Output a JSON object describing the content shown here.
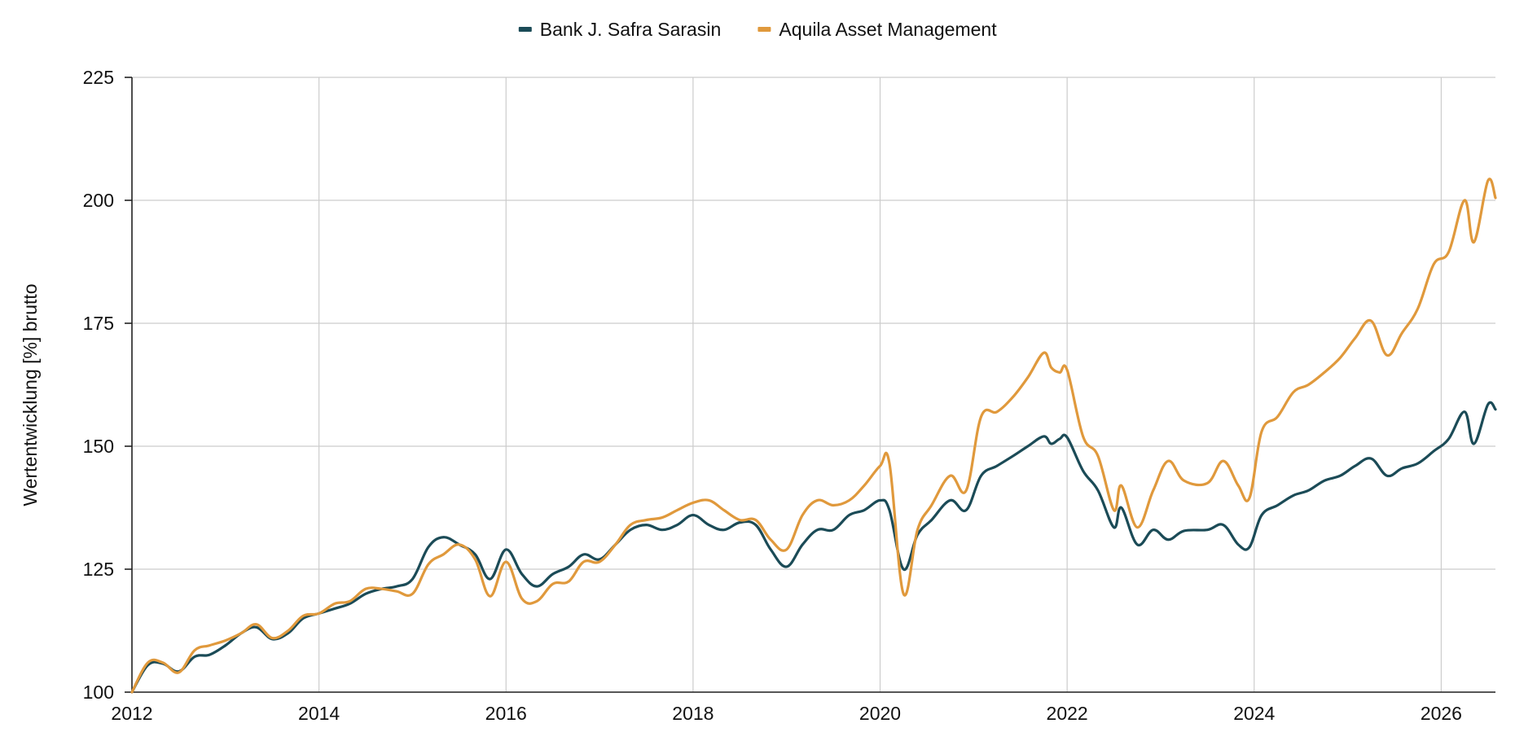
{
  "chart_data": {
    "type": "line",
    "title": "",
    "xlabel": "",
    "ylabel": "Wertentwicklung [%] brutto",
    "xlim": [
      2012.0,
      2026.58
    ],
    "ylim": [
      100,
      225
    ],
    "x_ticks": [
      2012,
      2014,
      2016,
      2018,
      2020,
      2022,
      2024,
      2026
    ],
    "y_ticks": [
      100,
      125,
      150,
      175,
      200,
      225
    ],
    "grid": true,
    "legend_position": "top-center",
    "series": [
      {
        "name": "Bank J. Safra Sarasin",
        "color": "#1b4b57",
        "points": [
          [
            2012.0,
            100
          ],
          [
            2012.17,
            105.5
          ],
          [
            2012.33,
            105.8
          ],
          [
            2012.5,
            104.2
          ],
          [
            2012.67,
            107.2
          ],
          [
            2012.83,
            107.6
          ],
          [
            2013.0,
            109.5
          ],
          [
            2013.17,
            112
          ],
          [
            2013.33,
            113.2
          ],
          [
            2013.5,
            110.8
          ],
          [
            2013.67,
            112
          ],
          [
            2013.83,
            115
          ],
          [
            2014.0,
            116
          ],
          [
            2014.17,
            117
          ],
          [
            2014.33,
            118
          ],
          [
            2014.5,
            120
          ],
          [
            2014.67,
            121
          ],
          [
            2014.83,
            121.5
          ],
          [
            2015.0,
            123
          ],
          [
            2015.17,
            129.5
          ],
          [
            2015.33,
            131.5
          ],
          [
            2015.5,
            130
          ],
          [
            2015.67,
            128
          ],
          [
            2015.83,
            123
          ],
          [
            2016.0,
            129
          ],
          [
            2016.17,
            124
          ],
          [
            2016.33,
            121.5
          ],
          [
            2016.5,
            124
          ],
          [
            2016.67,
            125.5
          ],
          [
            2016.83,
            128
          ],
          [
            2017.0,
            127
          ],
          [
            2017.17,
            130
          ],
          [
            2017.33,
            133
          ],
          [
            2017.5,
            134
          ],
          [
            2017.67,
            133
          ],
          [
            2017.83,
            134
          ],
          [
            2018.0,
            136
          ],
          [
            2018.17,
            134
          ],
          [
            2018.33,
            133
          ],
          [
            2018.5,
            134.5
          ],
          [
            2018.67,
            134
          ],
          [
            2018.83,
            129
          ],
          [
            2019.0,
            125.5
          ],
          [
            2019.17,
            130
          ],
          [
            2019.33,
            133
          ],
          [
            2019.5,
            133
          ],
          [
            2019.67,
            136
          ],
          [
            2019.83,
            137
          ],
          [
            2020.0,
            139
          ],
          [
            2020.1,
            137
          ],
          [
            2020.25,
            125
          ],
          [
            2020.4,
            132
          ],
          [
            2020.55,
            135
          ],
          [
            2020.75,
            139
          ],
          [
            2020.92,
            137
          ],
          [
            2021.08,
            144
          ],
          [
            2021.25,
            146
          ],
          [
            2021.42,
            148
          ],
          [
            2021.58,
            150
          ],
          [
            2021.75,
            152
          ],
          [
            2021.83,
            150.5
          ],
          [
            2021.92,
            151.5
          ],
          [
            2022.0,
            151.8
          ],
          [
            2022.17,
            145
          ],
          [
            2022.33,
            141
          ],
          [
            2022.5,
            133.5
          ],
          [
            2022.58,
            137.5
          ],
          [
            2022.75,
            130
          ],
          [
            2022.92,
            133
          ],
          [
            2023.08,
            131
          ],
          [
            2023.25,
            132.8
          ],
          [
            2023.5,
            133
          ],
          [
            2023.67,
            134
          ],
          [
            2023.83,
            130
          ],
          [
            2023.95,
            129.5
          ],
          [
            2024.08,
            136
          ],
          [
            2024.25,
            138
          ],
          [
            2024.42,
            140
          ],
          [
            2024.58,
            141
          ],
          [
            2024.75,
            143
          ],
          [
            2024.92,
            144
          ],
          [
            2025.08,
            146
          ],
          [
            2025.25,
            147.5
          ],
          [
            2025.42,
            144
          ],
          [
            2025.58,
            145.5
          ],
          [
            2025.75,
            146.5
          ],
          [
            2025.92,
            149
          ],
          [
            2026.08,
            151.5
          ],
          [
            2026.25,
            157
          ],
          [
            2026.35,
            150.5
          ],
          [
            2026.5,
            158.5
          ],
          [
            2026.58,
            157.5
          ]
        ]
      },
      {
        "name": "Aquila Asset Management",
        "color": "#e0993c",
        "points": [
          [
            2012.0,
            100
          ],
          [
            2012.17,
            106
          ],
          [
            2012.33,
            106
          ],
          [
            2012.5,
            104
          ],
          [
            2012.67,
            108.5
          ],
          [
            2012.83,
            109.5
          ],
          [
            2013.0,
            110.5
          ],
          [
            2013.17,
            112
          ],
          [
            2013.33,
            113.8
          ],
          [
            2013.5,
            111
          ],
          [
            2013.67,
            112.5
          ],
          [
            2013.83,
            115.5
          ],
          [
            2014.0,
            116
          ],
          [
            2014.17,
            118
          ],
          [
            2014.33,
            118.5
          ],
          [
            2014.5,
            121
          ],
          [
            2014.67,
            121
          ],
          [
            2014.83,
            120.5
          ],
          [
            2015.0,
            120
          ],
          [
            2015.17,
            126
          ],
          [
            2015.33,
            128
          ],
          [
            2015.5,
            130
          ],
          [
            2015.67,
            127
          ],
          [
            2015.83,
            119.5
          ],
          [
            2016.0,
            126.5
          ],
          [
            2016.17,
            119
          ],
          [
            2016.33,
            118.5
          ],
          [
            2016.5,
            122
          ],
          [
            2016.67,
            122.5
          ],
          [
            2016.83,
            126.5
          ],
          [
            2017.0,
            126.5
          ],
          [
            2017.17,
            130
          ],
          [
            2017.33,
            134
          ],
          [
            2017.5,
            135
          ],
          [
            2017.67,
            135.5
          ],
          [
            2017.83,
            137
          ],
          [
            2018.0,
            138.5
          ],
          [
            2018.17,
            139
          ],
          [
            2018.33,
            137
          ],
          [
            2018.5,
            135
          ],
          [
            2018.67,
            135
          ],
          [
            2018.83,
            131
          ],
          [
            2019.0,
            129
          ],
          [
            2019.17,
            136
          ],
          [
            2019.33,
            139
          ],
          [
            2019.5,
            138
          ],
          [
            2019.67,
            139
          ],
          [
            2019.83,
            142
          ],
          [
            2020.0,
            146
          ],
          [
            2020.1,
            146.5
          ],
          [
            2020.25,
            120
          ],
          [
            2020.4,
            133
          ],
          [
            2020.55,
            138
          ],
          [
            2020.75,
            144
          ],
          [
            2020.92,
            141
          ],
          [
            2021.08,
            156
          ],
          [
            2021.25,
            157
          ],
          [
            2021.42,
            160
          ],
          [
            2021.58,
            164
          ],
          [
            2021.75,
            169
          ],
          [
            2021.83,
            166
          ],
          [
            2021.92,
            165
          ],
          [
            2022.0,
            165.5
          ],
          [
            2022.17,
            152
          ],
          [
            2022.33,
            148
          ],
          [
            2022.5,
            137
          ],
          [
            2022.58,
            142
          ],
          [
            2022.75,
            133.5
          ],
          [
            2022.92,
            141
          ],
          [
            2023.08,
            147
          ],
          [
            2023.25,
            143
          ],
          [
            2023.5,
            142.5
          ],
          [
            2023.67,
            147
          ],
          [
            2023.83,
            142
          ],
          [
            2023.95,
            139.5
          ],
          [
            2024.08,
            153
          ],
          [
            2024.25,
            156
          ],
          [
            2024.42,
            161
          ],
          [
            2024.58,
            162.5
          ],
          [
            2024.75,
            165
          ],
          [
            2024.92,
            168
          ],
          [
            2025.08,
            172
          ],
          [
            2025.25,
            175.5
          ],
          [
            2025.42,
            168.5
          ],
          [
            2025.58,
            173
          ],
          [
            2025.75,
            178
          ],
          [
            2025.92,
            187
          ],
          [
            2026.08,
            189.5
          ],
          [
            2026.25,
            200
          ],
          [
            2026.35,
            191.5
          ],
          [
            2026.5,
            204
          ],
          [
            2026.58,
            200.5
          ]
        ]
      }
    ]
  }
}
